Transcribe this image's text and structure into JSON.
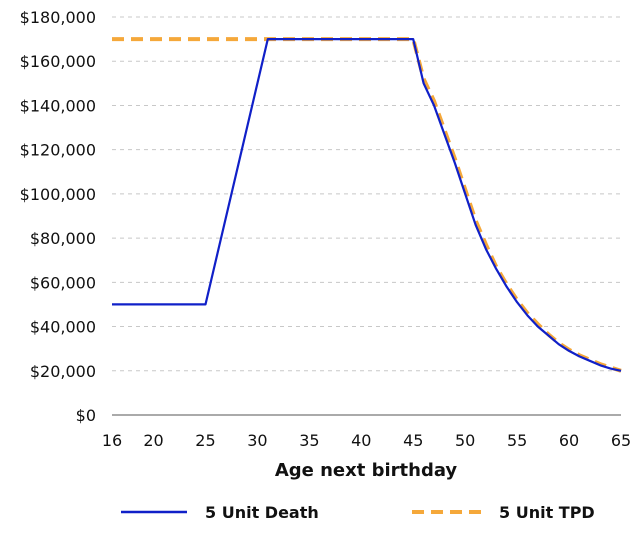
{
  "chart_data": {
    "type": "line",
    "title": "",
    "xlabel": "Age next birthday",
    "ylabel": "",
    "xlim": [
      16,
      65
    ],
    "ylim": [
      0,
      180000
    ],
    "x_ticks": [
      16,
      20,
      25,
      30,
      35,
      40,
      45,
      50,
      55,
      60,
      65
    ],
    "x_tick_labels": [
      "16",
      "20",
      "25",
      "30",
      "35",
      "40",
      "45",
      "50",
      "55",
      "60",
      "65"
    ],
    "y_ticks": [
      0,
      20000,
      40000,
      60000,
      80000,
      100000,
      120000,
      140000,
      160000,
      180000
    ],
    "y_tick_labels": [
      "$0",
      "$20,000",
      "$40,000",
      "$60,000",
      "$80,000",
      "$100,000",
      "$120,000",
      "$140,000",
      "$160,000",
      "$180,000"
    ],
    "grid": "horizontal dashed",
    "legend_position": "bottom",
    "series": [
      {
        "name": "5 Unit Death",
        "color": "#1020c8",
        "style": "solid",
        "x": [
          16,
          25,
          31,
          45,
          46,
          47,
          48,
          49,
          50,
          51,
          52,
          53,
          54,
          55,
          56,
          57,
          58,
          59,
          60,
          61,
          62,
          63,
          64,
          65
        ],
        "y": [
          50000,
          50000,
          170000,
          170000,
          150000,
          140000,
          127000,
          114000,
          100000,
          86000,
          75000,
          66000,
          58000,
          51000,
          45000,
          40000,
          36000,
          32000,
          29000,
          26500,
          24500,
          22500,
          21000,
          20000
        ]
      },
      {
        "name": "5 Unit TPD",
        "color": "#f5a83a",
        "style": "dashed",
        "x": [
          16,
          20,
          25,
          30,
          35,
          40,
          45,
          46,
          47,
          48,
          49,
          50,
          51,
          52,
          53,
          54,
          55,
          56,
          57,
          58,
          59,
          60,
          61,
          62,
          63,
          64,
          65
        ],
        "y": [
          170000,
          170000,
          170000,
          170000,
          170000,
          170000,
          170000,
          152000,
          142000,
          129000,
          116000,
          102000,
          88000,
          77000,
          67000,
          59000,
          52000,
          46000,
          41000,
          36500,
          32500,
          29500,
          27000,
          25000,
          23000,
          21500,
          20000
        ]
      }
    ]
  }
}
